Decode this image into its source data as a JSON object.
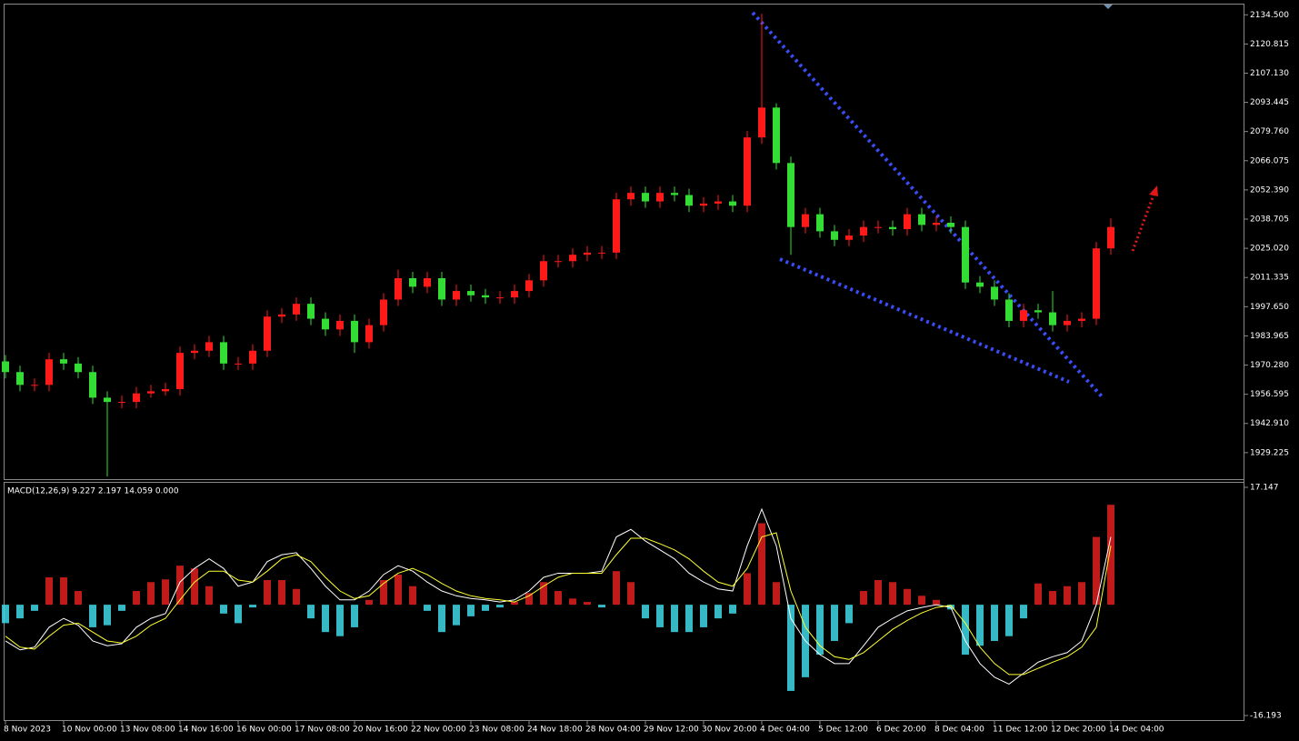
{
  "chart_data": [
    {
      "type": "candlestick",
      "categories": [
        "8 Nov 2023",
        null,
        null,
        null,
        "10 Nov 00:00",
        null,
        null,
        null,
        "13 Nov 08:00",
        null,
        null,
        null,
        "14 Nov 16:00",
        null,
        null,
        null,
        "16 Nov 00:00",
        null,
        null,
        null,
        "17 Nov 08:00",
        null,
        null,
        null,
        "20 Nov 16:00",
        null,
        null,
        null,
        "22 Nov 00:00",
        null,
        null,
        null,
        "23 Nov 08:00",
        null,
        null,
        null,
        "24 Nov 18:00",
        null,
        null,
        null,
        "28 Nov 04:00",
        null,
        null,
        null,
        "29 Nov 12:00",
        null,
        null,
        null,
        "30 Nov 20:00",
        null,
        null,
        null,
        "4 Dec 04:00",
        null,
        null,
        null,
        "5 Dec 12:00",
        null,
        null,
        null,
        "6 Dec 20:00",
        null,
        null,
        null,
        "8 Dec 04:00",
        null,
        null,
        null,
        "11 Dec 12:00",
        null,
        null,
        null,
        "12 Dec 20:00",
        null,
        null,
        null,
        "14 Dec 04:00"
      ],
      "open": [
        1972,
        1967,
        1961,
        1961,
        1973,
        1971,
        1967,
        1955,
        1953,
        1953,
        1957,
        1958,
        1959,
        1976,
        1977,
        1981,
        1971,
        1971,
        1977,
        1993,
        1994,
        1999,
        1992,
        1987,
        1991,
        1981,
        1989,
        2001,
        2011,
        2007,
        2011,
        2001,
        2005,
        2003,
        2002,
        2002,
        2005,
        2010,
        2019,
        2019,
        2022,
        2023,
        2023,
        2048,
        2051,
        2047,
        2051,
        2050,
        2045,
        2046,
        2047,
        2045,
        2077,
        2091,
        2065,
        2035,
        2041,
        2033,
        2029,
        2031,
        2035,
        2035,
        2034,
        2041,
        2036,
        2037,
        2035,
        2009,
        2007,
        2001,
        1991,
        1996,
        1995,
        1989,
        1991,
        1992,
        2025
      ],
      "high": [
        1975,
        1970,
        1964,
        1976,
        1976,
        1974,
        1970,
        1958,
        1956,
        1960,
        1961,
        1962,
        1979,
        1980,
        1984,
        1984,
        1974,
        1980,
        1996,
        1997,
        2002,
        2002,
        1995,
        1994,
        1994,
        1992,
        2004,
        2015,
        2014,
        2014,
        2014,
        2008,
        2008,
        2006,
        2005,
        2008,
        2013,
        2022,
        2022,
        2025,
        2026,
        2026,
        2051,
        2054,
        2054,
        2054,
        2054,
        2053,
        2049,
        2050,
        2050,
        2080,
        2135,
        2093,
        2068,
        2044,
        2044,
        2036,
        2034,
        2038,
        2038,
        2038,
        2044,
        2044,
        2040,
        2040,
        2038,
        2012,
        2010,
        2004,
        1999,
        1999,
        2005,
        1994,
        1995,
        2028,
        2039
      ],
      "low": [
        1964,
        1958,
        1958,
        1958,
        1968,
        1964,
        1952,
        1918,
        1950,
        1950,
        1955,
        1956,
        1956,
        1973,
        1974,
        1968,
        1968,
        1968,
        1974,
        1990,
        1991,
        1989,
        1984,
        1984,
        1976,
        1978,
        1986,
        1998,
        2004,
        2004,
        1998,
        1998,
        2000,
        1999,
        1999,
        1999,
        2002,
        2007,
        2016,
        2016,
        2019,
        2020,
        2020,
        2045,
        2044,
        2044,
        2047,
        2042,
        2042,
        2043,
        2042,
        2042,
        2074,
        2062,
        2022,
        2032,
        2030,
        2026,
        2026,
        2028,
        2032,
        2031,
        2031,
        2033,
        2033,
        2032,
        2006,
        2004,
        1998,
        1988,
        1988,
        1992,
        1986,
        1986,
        1988,
        1989,
        2022
      ],
      "close": [
        1967,
        1961,
        1961,
        1973,
        1971,
        1967,
        1955,
        1953,
        1953,
        1957,
        1958,
        1959,
        1976,
        1977,
        1981,
        1971,
        1971,
        1977,
        1993,
        1994,
        1999,
        1992,
        1987,
        1991,
        1981,
        1989,
        2001,
        2011,
        2007,
        2011,
        2001,
        2005,
        2003,
        2002,
        2002,
        2005,
        2010,
        2019,
        2019,
        2022,
        2023,
        2023,
        2048,
        2051,
        2047,
        2051,
        2050,
        2045,
        2046,
        2047,
        2045,
        2077,
        2091,
        2065,
        2035,
        2041,
        2033,
        2029,
        2031,
        2035,
        2035,
        2034,
        2041,
        2036,
        2037,
        2035,
        2009,
        2007,
        2001,
        1991,
        1996,
        1995,
        1989,
        1991,
        1992,
        2025,
        2035
      ],
      "up_color": "#ff1a1a",
      "down_color": "#33dd33",
      "ylim": [
        1916.8,
        2139.3
      ],
      "yticks": [
        {
          "value": 2134.5,
          "label": "2134.500"
        },
        {
          "value": 2120.815,
          "label": "2120.815"
        },
        {
          "value": 2107.13,
          "label": "2107.130"
        },
        {
          "value": 2093.445,
          "label": "2093.445"
        },
        {
          "value": 2079.76,
          "label": "2079.760"
        },
        {
          "value": 2066.075,
          "label": "2066.075"
        },
        {
          "value": 2052.39,
          "label": "2052.390"
        },
        {
          "value": 2038.705,
          "label": "2038.705"
        },
        {
          "value": 2025.02,
          "label": "2025.020"
        },
        {
          "value": 2011.335,
          "label": "2011.335"
        },
        {
          "value": 1997.65,
          "label": "1997.650"
        },
        {
          "value": 1983.965,
          "label": "1983.965"
        },
        {
          "value": 1970.28,
          "label": "1970.280"
        },
        {
          "value": 1956.595,
          "label": "1956.595"
        },
        {
          "value": 1942.91,
          "label": "1942.910"
        },
        {
          "value": 1929.225,
          "label": "1929.225"
        }
      ]
    },
    {
      "type": "macd",
      "title": "MACD(12,26,9) 9.227 2.197 14.059 0.000",
      "ylim": [
        -16.86,
        17.81
      ],
      "yticks": [
        17.147,
        -16.193
      ],
      "series": [
        {
          "style": "histogram",
          "up_color": "#e02020",
          "down_color": "#40d8e8",
          "values": [
            -2.7,
            -2.0,
            -0.9,
            4.0,
            4.0,
            2.0,
            -3.3,
            -3.0,
            -0.9,
            2.0,
            3.3,
            3.7,
            5.7,
            5.3,
            2.7,
            -1.3,
            -2.7,
            -0.4,
            3.6,
            3.6,
            2.3,
            -2.0,
            -4.0,
            -4.6,
            -3.3,
            0.7,
            3.6,
            4.4,
            2.7,
            -0.9,
            -4.0,
            -3.0,
            -1.7,
            -0.9,
            -0.4,
            0.4,
            1.7,
            3.3,
            2.0,
            0.9,
            0.4,
            -0.4,
            4.9,
            3.3,
            -2.0,
            -3.3,
            -4.0,
            -4.0,
            -3.3,
            -2.0,
            -1.3,
            4.6,
            11.9,
            3.3,
            -12.6,
            -10.6,
            -7.3,
            -5.3,
            -2.7,
            2.0,
            3.6,
            3.3,
            2.3,
            1.3,
            0.7,
            -0.7,
            -7.3,
            -6.0,
            -5.3,
            -4.6,
            -2.0,
            3.1,
            2.0,
            2.7,
            3.3,
            9.9,
            14.6
          ]
        },
        {
          "style": "line",
          "color": "#ffffff",
          "values": [
            -5.3,
            -6.6,
            -6.2,
            -3.3,
            -2.0,
            -3.0,
            -5.3,
            -6.0,
            -5.7,
            -3.3,
            -2.0,
            -1.3,
            3.3,
            5.3,
            6.7,
            5.3,
            2.7,
            3.3,
            6.3,
            7.3,
            7.6,
            5.3,
            2.7,
            0.7,
            0.7,
            2.0,
            4.4,
            5.7,
            4.9,
            3.3,
            2.0,
            1.3,
            0.9,
            0.7,
            0.4,
            0.7,
            2.0,
            4.0,
            4.6,
            4.6,
            4.6,
            4.9,
            9.9,
            11.0,
            9.3,
            8.0,
            6.7,
            4.6,
            3.3,
            2.3,
            2.0,
            8.6,
            13.96,
            8.6,
            -2.0,
            -5.3,
            -7.3,
            -8.6,
            -8.6,
            -6.0,
            -3.3,
            -2.0,
            -0.9,
            -0.4,
            0,
            -0.4,
            -5.3,
            -8.6,
            -10.6,
            -11.6,
            -10.0,
            -8.4,
            -7.6,
            -7.0,
            -5.3,
            0,
            9.9
          ]
        },
        {
          "style": "line",
          "color": "#ffff33",
          "values": [
            -4.6,
            -6.2,
            -6.5,
            -4.6,
            -3.0,
            -2.7,
            -4.0,
            -5.3,
            -5.6,
            -4.6,
            -3.0,
            -2.0,
            0.7,
            3.3,
            4.9,
            4.9,
            3.6,
            3.3,
            4.9,
            6.7,
            7.3,
            6.3,
            4.0,
            2.0,
            0.9,
            1.3,
            3.1,
            4.6,
            5.3,
            4.4,
            3.1,
            2.0,
            1.3,
            0.9,
            0.7,
            0.4,
            1.3,
            2.7,
            4.0,
            4.6,
            4.6,
            4.6,
            7.3,
            9.7,
            9.7,
            8.9,
            8.0,
            6.7,
            4.9,
            3.3,
            2.7,
            5.3,
            9.9,
            10.5,
            2.0,
            -3.3,
            -6.0,
            -7.6,
            -8.0,
            -7.0,
            -5.3,
            -3.6,
            -2.3,
            -1.2,
            -0.4,
            -0.1,
            -2.7,
            -6.2,
            -8.6,
            -10.2,
            -10.2,
            -9.3,
            -8.4,
            -7.6,
            -6.2,
            -3.3,
            8.6
          ]
        }
      ]
    }
  ]
}
